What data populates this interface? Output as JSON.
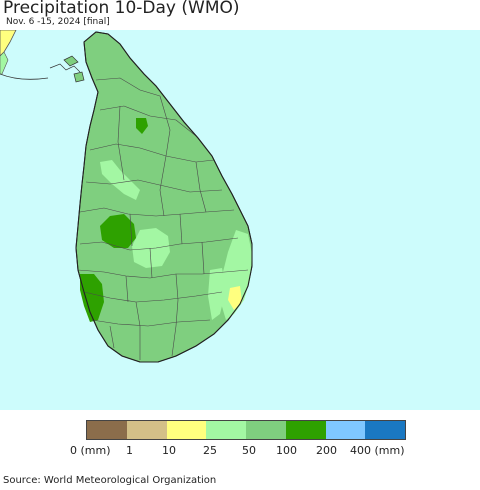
{
  "header": {
    "title": "Precipitation 10-Day (WMO)",
    "subtitle": "Nov. 6 -15, 2024 [final]"
  },
  "map": {
    "region": "Sri Lanka",
    "colors": {
      "ocean": "#cdfcfc",
      "land_base": "#7fcf7f",
      "light_green": "#a3f7a3",
      "dark_green": "#2ea100",
      "yellow": "#ffff7f",
      "boundary": "#555555"
    }
  },
  "legend": {
    "unit": "(mm)",
    "colors": [
      "#8b6d4b",
      "#d3c088",
      "#ffff7f",
      "#a3f7a3",
      "#7fcf7f",
      "#2ea100",
      "#7fc7ff",
      "#1a78c2"
    ],
    "labels": [
      "0 (mm)",
      "1",
      "10",
      "25",
      "50",
      "100",
      "200",
      "400 (mm)"
    ]
  },
  "footer": {
    "source": "Source: World Meteorological Organization"
  }
}
